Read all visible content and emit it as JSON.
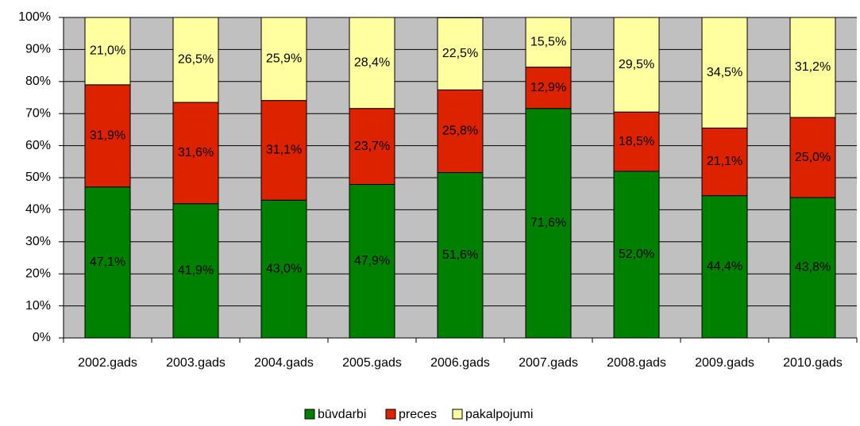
{
  "chart_data": {
    "type": "stacked_bar",
    "categories": [
      "2002.gads",
      "2003.gads",
      "2004.gads",
      "2005.gads",
      "2006.gads",
      "2007.gads",
      "2008.gads",
      "2009.gads",
      "2010.gads"
    ],
    "series": [
      {
        "name": "būvdarbi",
        "color": "#008000",
        "values": [
          47.1,
          41.9,
          43.0,
          47.9,
          51.6,
          71.6,
          52.0,
          44.4,
          43.8
        ],
        "value_labels": [
          "47,1%",
          "41,9%",
          "43,0%",
          "47,9%",
          "51,6%",
          "71,6%",
          "52,0%",
          "44,4%",
          "43,8%"
        ]
      },
      {
        "name": "preces",
        "color": "#dd2200",
        "values": [
          31.9,
          31.6,
          31.1,
          23.7,
          25.8,
          12.9,
          18.5,
          21.1,
          25.0
        ],
        "value_labels": [
          "31,9%",
          "31,6%",
          "31,1%",
          "23,7%",
          "25,8%",
          "12,9%",
          "18,5%",
          "21,1%",
          "25,0%"
        ]
      },
      {
        "name": "pakalpojumi",
        "color": "#ffffa0",
        "values": [
          21.0,
          26.5,
          25.9,
          28.4,
          22.5,
          15.5,
          29.5,
          34.5,
          31.2
        ],
        "value_labels": [
          "21,0%",
          "26,5%",
          "25,9%",
          "28,4%",
          "22,5%",
          "15,5%",
          "29,5%",
          "34,5%",
          "31,2%"
        ]
      }
    ],
    "ylim": [
      0,
      100
    ],
    "yticks": [
      {
        "value": 0,
        "label": "0%"
      },
      {
        "value": 10,
        "label": "10%"
      },
      {
        "value": 20,
        "label": "20%"
      },
      {
        "value": 30,
        "label": "30%"
      },
      {
        "value": 40,
        "label": "40%"
      },
      {
        "value": 50,
        "label": "50%"
      },
      {
        "value": 60,
        "label": "60%"
      },
      {
        "value": 70,
        "label": "70%"
      },
      {
        "value": 80,
        "label": "80%"
      },
      {
        "value": 90,
        "label": "90%"
      },
      {
        "value": 100,
        "label": "100%"
      }
    ],
    "grid": true,
    "legend": "bottom"
  }
}
